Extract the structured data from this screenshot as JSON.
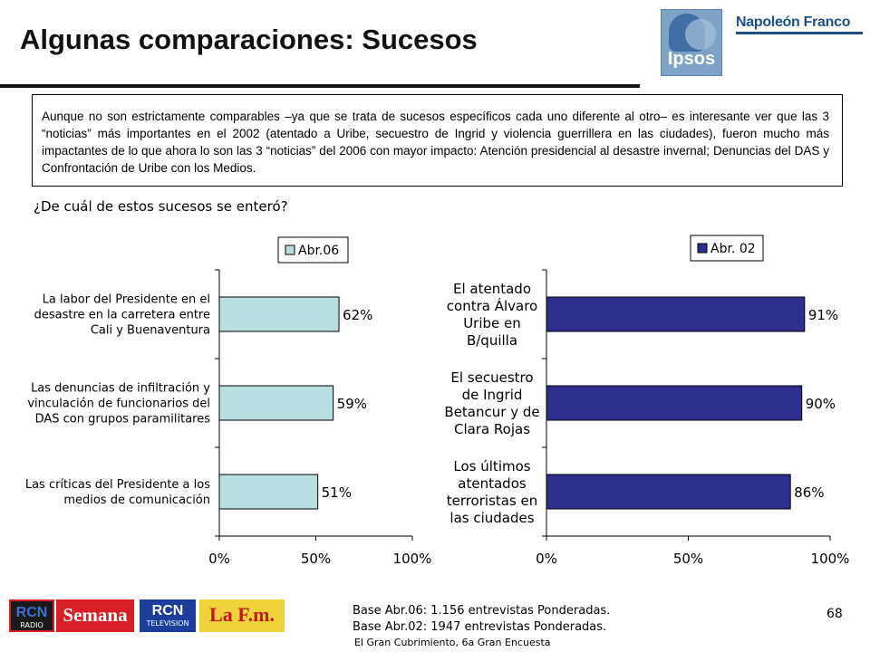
{
  "title": "Algunas comparaciones: Sucesos",
  "logos": {
    "ipsos": "Ipsos",
    "napoleon": "Napoleón Franco"
  },
  "intro_text": "Aunque no son estrictamente comparables –ya que se trata de sucesos específicos cada uno diferente al otro– es interesante ver que las 3 “noticias” más importantes en el 2002 (atentado a Uribe, secuestro de Ingrid y violencia guerrillera en las ciudades), fueron mucho más impactantes de lo que ahora lo son las 3 “noticias” del 2006 con mayor impacto: Atención presidencial al desastre invernal; Denuncias del DAS y Confrontación de Uribe con los Medios.",
  "question": "¿De cuál de estos sucesos se enteró?",
  "chart_data": [
    {
      "type": "bar",
      "orientation": "horizontal",
      "categories": [
        [
          "La labor del Presidente en el",
          "desastre en la carretera entre",
          "Cali y Buenaventura"
        ],
        [
          "Las denuncias de infiltración y",
          "vinculación de funcionarios del",
          "DAS con grupos paramilitares"
        ],
        [
          "Las críticas del Presidente a los",
          "medios de comunicación"
        ]
      ],
      "series": [
        {
          "name": "Abr.06",
          "values": [
            62,
            59,
            51
          ],
          "color": "#b7dfe2"
        }
      ],
      "data_labels": [
        "62%",
        "59%",
        "51%"
      ],
      "xlim": [
        0,
        100
      ],
      "xticks": [
        "0%",
        "50%",
        "100%"
      ],
      "legend_position": "top",
      "grid": false
    },
    {
      "type": "bar",
      "orientation": "horizontal",
      "categories": [
        [
          "El atentado",
          "contra Álvaro",
          "Uribe en",
          "B/quilla"
        ],
        [
          "El secuestro",
          "de Ingrid",
          "Betancur y de",
          "Clara Rojas"
        ],
        [
          "Los últimos",
          "atentados",
          "terroristas en",
          "las ciudades"
        ]
      ],
      "series": [
        {
          "name": "Abr. 02",
          "values": [
            91,
            90,
            86
          ],
          "color": "#2e2e8f"
        }
      ],
      "data_labels": [
        "91%",
        "90%",
        "86%"
      ],
      "xlim": [
        0,
        100
      ],
      "xticks": [
        "0%",
        "50%",
        "100%"
      ],
      "legend_position": "top",
      "grid": false
    }
  ],
  "footer": {
    "base_lines": [
      "Base Abr.06: 1.156 entrevistas Ponderadas.",
      "Base Abr.02: 1947 entrevistas Ponderadas."
    ],
    "subtitle": "El Gran Cubrimiento, 6a Gran Encuesta",
    "page_number": "68"
  },
  "sponsors": {
    "rcn_radio": {
      "mark": "RCN",
      "caption": "RADIO"
    },
    "semana": "Semana",
    "rcn_tv": {
      "mark": "RCN",
      "caption": "TELEVISION"
    },
    "lafm": "La F.m."
  }
}
